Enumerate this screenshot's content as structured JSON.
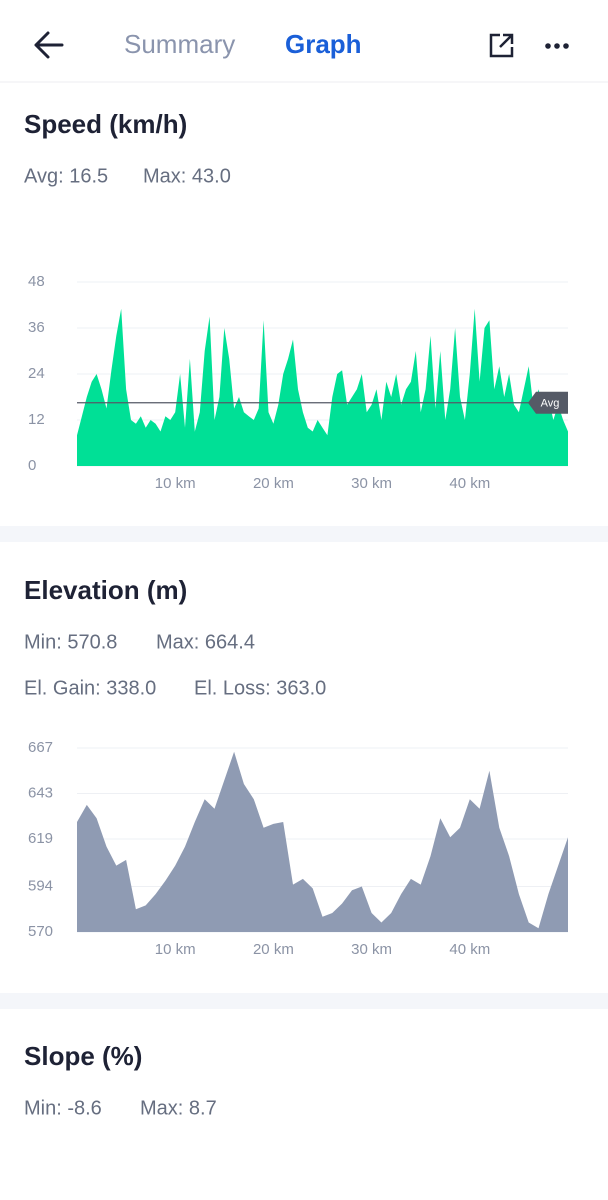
{
  "header": {
    "tabs": [
      "Summary",
      "Graph"
    ],
    "active_tab": 1
  },
  "speed": {
    "title": "Speed (km/h)",
    "stats": [
      "Avg: 16.5",
      "Max: 43.0"
    ],
    "chart": {
      "type": "area",
      "color": "#00e096",
      "grid": true,
      "x": [
        0,
        0.5,
        1,
        1.5,
        2,
        2.5,
        3,
        3.5,
        4,
        4.5,
        5,
        5.5,
        6,
        6.5,
        7,
        7.5,
        8,
        8.5,
        9,
        9.5,
        10,
        10.5,
        11,
        11.5,
        12,
        12.5,
        13,
        13.5,
        14,
        14.5,
        15,
        15.5,
        16,
        16.5,
        17,
        17.5,
        18,
        18.5,
        19,
        19.5,
        20,
        20.5,
        21,
        21.5,
        22,
        22.5,
        23,
        23.5,
        24,
        24.5,
        25,
        25.5,
        26,
        26.5,
        27,
        27.5,
        28,
        28.5,
        29,
        29.5,
        30,
        30.5,
        31,
        31.5,
        32,
        32.5,
        33,
        33.5,
        34,
        34.5,
        35,
        35.5,
        36,
        36.5,
        37,
        37.5,
        38,
        38.5,
        39,
        39.5,
        40,
        40.5,
        41,
        41.5,
        42,
        42.5,
        43,
        43.5,
        44,
        44.5,
        45,
        45.5,
        46,
        46.5,
        47,
        47.5,
        48,
        48.5,
        49,
        49.5,
        50
      ],
      "values": [
        8,
        13,
        18,
        22,
        24,
        20,
        15,
        25,
        34,
        41,
        20,
        12,
        11,
        13,
        10,
        12,
        11,
        9,
        13,
        12,
        14,
        24,
        10,
        28,
        9,
        14,
        30,
        39,
        12,
        18,
        36,
        28,
        15,
        18,
        14,
        13,
        12,
        15,
        38,
        14,
        11,
        16,
        24,
        28,
        33,
        20,
        14,
        10,
        9,
        12,
        10,
        8,
        18,
        24,
        25,
        16,
        18,
        20,
        24,
        14,
        16,
        20,
        12,
        22,
        18,
        24,
        16,
        20,
        22,
        30,
        14,
        20,
        34,
        15,
        30,
        12,
        20,
        36,
        18,
        12,
        24,
        41,
        22,
        36,
        38,
        20,
        26,
        18,
        24,
        16,
        14,
        20,
        26,
        15,
        20,
        14,
        18,
        12,
        16,
        12,
        9
      ],
      "xlim": [
        0,
        50
      ],
      "ylim": [
        0,
        48
      ],
      "yticks": [
        0,
        12,
        24,
        36,
        48
      ],
      "xticks": [
        {
          "value": 10,
          "label": "10 km"
        },
        {
          "value": 20,
          "label": "20 km"
        },
        {
          "value": 30,
          "label": "30 km"
        },
        {
          "value": 40,
          "label": "40 km"
        }
      ],
      "avg_line": {
        "value": 16.5,
        "label": "Avg"
      }
    }
  },
  "elevation": {
    "title": "Elevation (m)",
    "stats": [
      "Min: 570.8",
      "Max: 664.4",
      "El. Gain: 338.0",
      "El. Loss: 363.0"
    ],
    "chart": {
      "type": "area",
      "color": "#8f9bb3",
      "grid": true,
      "x": [
        0,
        1,
        2,
        3,
        4,
        5,
        6,
        7,
        8,
        9,
        10,
        11,
        12,
        13,
        14,
        15,
        16,
        17,
        18,
        19,
        20,
        21,
        22,
        23,
        24,
        25,
        26,
        27,
        28,
        29,
        30,
        31,
        32,
        33,
        34,
        35,
        36,
        37,
        38,
        39,
        40,
        41,
        42,
        43,
        44,
        45,
        46,
        47,
        48,
        49,
        50
      ],
      "values": [
        628,
        637,
        630,
        615,
        605,
        608,
        582,
        584,
        590,
        597,
        605,
        615,
        628,
        640,
        635,
        650,
        665,
        648,
        640,
        625,
        627,
        628,
        595,
        598,
        593,
        578,
        580,
        585,
        592,
        594,
        580,
        575,
        580,
        590,
        598,
        595,
        610,
        630,
        620,
        625,
        640,
        635,
        655,
        625,
        610,
        590,
        575,
        572,
        590,
        605,
        620
      ],
      "xlim": [
        0,
        50
      ],
      "ylim": [
        570,
        667
      ],
      "yticks": [
        570,
        594,
        619,
        643,
        667
      ],
      "xticks": [
        {
          "value": 10,
          "label": "10 km"
        },
        {
          "value": 20,
          "label": "20 km"
        },
        {
          "value": 30,
          "label": "30 km"
        },
        {
          "value": 40,
          "label": "40 km"
        }
      ]
    }
  },
  "slope": {
    "title": "Slope (%)",
    "stats": [
      "Min: -8.6",
      "Max: 8.7"
    ]
  }
}
